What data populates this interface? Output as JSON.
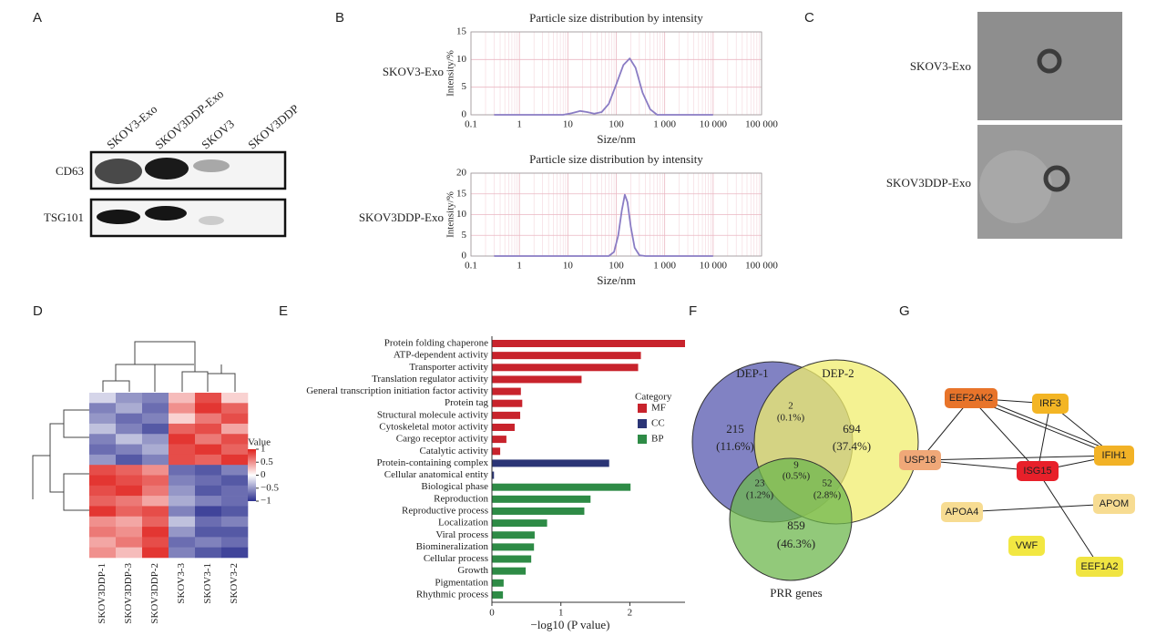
{
  "panel_labels": [
    "A",
    "B",
    "C",
    "D",
    "E",
    "F",
    "G"
  ],
  "western_blot": {
    "lanes": [
      "SKOV3-Exo",
      "SKOV3DDP-Exo",
      "SKOV3",
      "SKOV3DDP"
    ],
    "proteins": [
      "CD63",
      "TSG101"
    ]
  },
  "tem": {
    "samples": [
      "SKOV3-Exo",
      "SKOV3DDP-Exo"
    ]
  },
  "chart_data": [
    {
      "type": "line",
      "title": "Particle size distribution by intensity",
      "sample": "SKOV3-Exo",
      "xlabel": "Size/nm",
      "ylabel": "Intensity/%",
      "xscale": "log",
      "grid": true,
      "color": "#8a7cc4",
      "xlim": [
        0.1,
        100000
      ],
      "xticks": [
        0.1,
        1,
        10,
        100,
        {
          "value": 1000,
          "label": "1 000"
        },
        {
          "value": 10000,
          "label": "10 000"
        },
        {
          "value": 100000,
          "label": "100 000"
        }
      ],
      "ylim": [
        0,
        15
      ],
      "yticks": [
        0,
        5,
        10,
        15
      ],
      "x": [
        0.3,
        8,
        12,
        18,
        25,
        35,
        50,
        70,
        100,
        140,
        190,
        250,
        350,
        500,
        700,
        10000
      ],
      "values": [
        0,
        0,
        0.3,
        0.7,
        0.5,
        0.2,
        0.5,
        2,
        5.5,
        9,
        10.2,
        8.5,
        4,
        1,
        0,
        0
      ]
    },
    {
      "type": "line",
      "title": "Particle size distribution by intensity",
      "sample": "SKOV3DDP-Exo",
      "xlabel": "Size/nm",
      "ylabel": "Intensity/%",
      "xscale": "log",
      "grid": true,
      "color": "#8a7cc4",
      "xlim": [
        0.1,
        100000
      ],
      "xticks": [
        0.1,
        1,
        10,
        100,
        {
          "value": 1000,
          "label": "1 000"
        },
        {
          "value": 10000,
          "label": "10 000"
        },
        {
          "value": 100000,
          "label": "100 000"
        }
      ],
      "ylim": [
        0,
        20
      ],
      "yticks": [
        0,
        5,
        10,
        15,
        20
      ],
      "x": [
        0.3,
        70,
        90,
        110,
        130,
        150,
        170,
        200,
        240,
        300,
        400,
        10000
      ],
      "values": [
        0,
        0,
        1,
        5,
        11,
        14.8,
        13,
        7,
        2,
        0.2,
        0,
        0
      ]
    },
    {
      "type": "bar",
      "orientation": "horizontal",
      "categories": [
        "Protein folding chaperone",
        "ATP-dependent activity",
        "Transporter activity",
        "Translation regulator activity",
        "General transcription initiation factor activity",
        "Protein tag",
        "Structural molecule activity",
        "Cytoskeletal motor activity",
        "Cargo receptor activity",
        "Catalytic activity",
        "Protein-containing complex",
        "Cellular anatomical entity",
        "Biological phase",
        "Reproduction",
        "Reproductive process",
        "Localization",
        "Viral process",
        "Biomineralization",
        "Cellular process",
        "Growth",
        "Pigmentation",
        "Rhythmic process"
      ],
      "values": [
        2.8,
        2.16,
        2.12,
        1.3,
        0.42,
        0.44,
        0.41,
        0.33,
        0.21,
        0.12,
        1.7,
        0.03,
        2.01,
        1.43,
        1.34,
        0.8,
        0.62,
        0.61,
        0.57,
        0.49,
        0.17,
        0.16
      ],
      "groups": [
        "MF",
        "MF",
        "MF",
        "MF",
        "MF",
        "MF",
        "MF",
        "MF",
        "MF",
        "MF",
        "CC",
        "CC",
        "BP",
        "BP",
        "BP",
        "BP",
        "BP",
        "BP",
        "BP",
        "BP",
        "BP",
        "BP"
      ],
      "legend_title": "Category",
      "legend": [
        {
          "name": "MF",
          "color": "#c8232c"
        },
        {
          "name": "CC",
          "color": "#2b3576"
        },
        {
          "name": "BP",
          "color": "#2e8b46"
        }
      ],
      "xlim": [
        0,
        2.8
      ],
      "xticks": [
        0,
        1,
        2
      ],
      "xlabel": "−log10 (P value)"
    },
    {
      "type": "heatmap",
      "columns": [
        "SKOV3DDP-1",
        "SKOV3DDP-3",
        "SKOV3DDP-2",
        "SKOV3-3",
        "SKOV3-1",
        "SKOV3-2"
      ],
      "legend_title": "Value",
      "colorbar_lim": [
        -1,
        1
      ],
      "colorbar_ticks": [
        1,
        0.5,
        0,
        {
          "value": -0.5,
          "label": "−0.5"
        },
        {
          "value": -1,
          "label": "−1"
        }
      ],
      "values": [
        [
          -0.2,
          -0.5,
          -0.6,
          0.3,
          0.8,
          0.2
        ],
        [
          -0.6,
          -0.4,
          -0.7,
          0.5,
          0.9,
          0.7
        ],
        [
          -0.5,
          -0.7,
          -0.6,
          0.2,
          0.6,
          0.8
        ],
        [
          -0.3,
          -0.6,
          -0.8,
          0.7,
          0.8,
          0.4
        ],
        [
          -0.6,
          -0.3,
          -0.5,
          0.9,
          0.6,
          0.8
        ],
        [
          -0.7,
          -0.6,
          -0.4,
          0.8,
          0.9,
          0.7
        ],
        [
          -0.5,
          -0.8,
          -0.6,
          0.8,
          0.7,
          0.9
        ],
        [
          0.8,
          0.7,
          0.5,
          -0.7,
          -0.8,
          -0.6
        ],
        [
          0.9,
          0.8,
          0.7,
          -0.6,
          -0.7,
          -0.8
        ],
        [
          0.8,
          0.9,
          0.6,
          -0.5,
          -0.8,
          -0.7
        ],
        [
          0.7,
          0.6,
          0.4,
          -0.4,
          -0.6,
          -0.7
        ],
        [
          0.9,
          0.7,
          0.8,
          -0.6,
          -0.9,
          -0.8
        ],
        [
          0.5,
          0.4,
          0.7,
          -0.3,
          -0.7,
          -0.6
        ],
        [
          0.6,
          0.5,
          0.9,
          -0.5,
          -0.8,
          -0.8
        ],
        [
          0.4,
          0.6,
          0.8,
          -0.7,
          -0.6,
          -0.7
        ],
        [
          0.5,
          0.3,
          0.9,
          -0.6,
          -0.8,
          -0.9
        ]
      ]
    }
  ],
  "venn": {
    "sets": [
      "DEP-1",
      "DEP-2",
      "PRR genes"
    ],
    "regions": [
      {
        "count": "215",
        "percent": "(11.6%)"
      },
      {
        "count": "2",
        "percent": "(0.1%)"
      },
      {
        "count": "694",
        "percent": "(37.4%)"
      },
      {
        "count": "9",
        "percent": "(0.5%)"
      },
      {
        "count": "23",
        "percent": "(1.2%)"
      },
      {
        "count": "52",
        "percent": "(2.8%)"
      },
      {
        "count": "859",
        "percent": "(46.3%)"
      }
    ]
  },
  "network": {
    "nodes": [
      {
        "label": "EEF2AK2",
        "color": "#e8742a"
      },
      {
        "label": "IRF3",
        "color": "#f3b524"
      },
      {
        "label": "USP18",
        "color": "#f0a878"
      },
      {
        "label": "ISG15",
        "color": "#e8202a"
      },
      {
        "label": "IFIH1",
        "color": "#f2b226"
      },
      {
        "label": "APOM",
        "color": "#f7dc92"
      },
      {
        "label": "APOA4",
        "color": "#f7dc92"
      },
      {
        "label": "VWF",
        "color": "#f2e742"
      },
      {
        "label": "EEF1A2",
        "color": "#f0e442"
      }
    ]
  }
}
